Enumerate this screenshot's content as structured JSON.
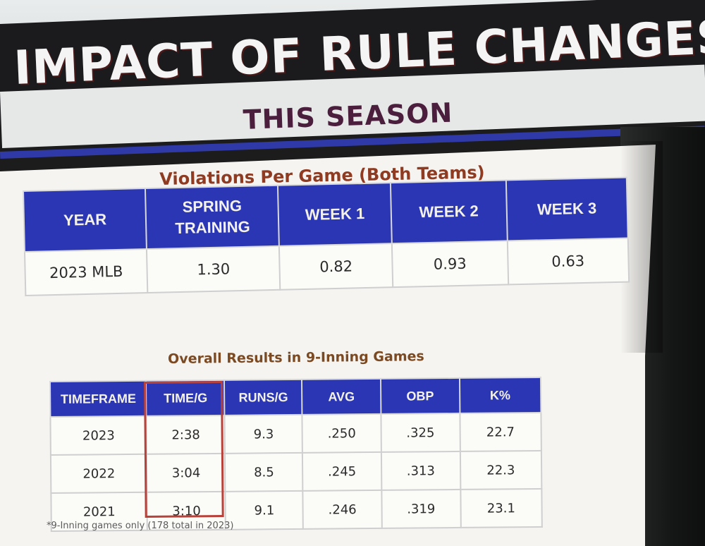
{
  "title": "IMPACT OF RULE CHANGES",
  "subtitle": "THIS SEASON",
  "violations": {
    "heading": "Violations Per Game (Both Teams)",
    "columns": [
      "YEAR",
      "SPRING TRAINING",
      "WEEK 1",
      "WEEK 2",
      "WEEK 3"
    ],
    "row": [
      "2023 MLB",
      "1.30",
      "0.82",
      "0.93",
      "0.63"
    ]
  },
  "results": {
    "heading": "Overall Results in 9-Inning Games",
    "columns": [
      "TIMEFRAME",
      "TIME/G",
      "RUNS/G",
      "AVG",
      "OBP",
      "K%"
    ],
    "rows": [
      [
        "2023",
        "2:38",
        "9.3",
        ".250",
        ".325",
        "22.7"
      ],
      [
        "2022",
        "3:04",
        "8.5",
        ".245",
        ".313",
        "22.3"
      ],
      [
        "2021",
        "3:10",
        "9.1",
        ".246",
        ".319",
        "23.1"
      ]
    ],
    "highlighted_column": "TIME/G",
    "highlight_color": "#b8423a",
    "footnote": "*9-Inning games only (178 total in 2023)"
  },
  "colors": {
    "header_blue": "#2b36b4",
    "title_bar": "#1b1b1d",
    "subtitle_text": "#4a1e3c"
  }
}
